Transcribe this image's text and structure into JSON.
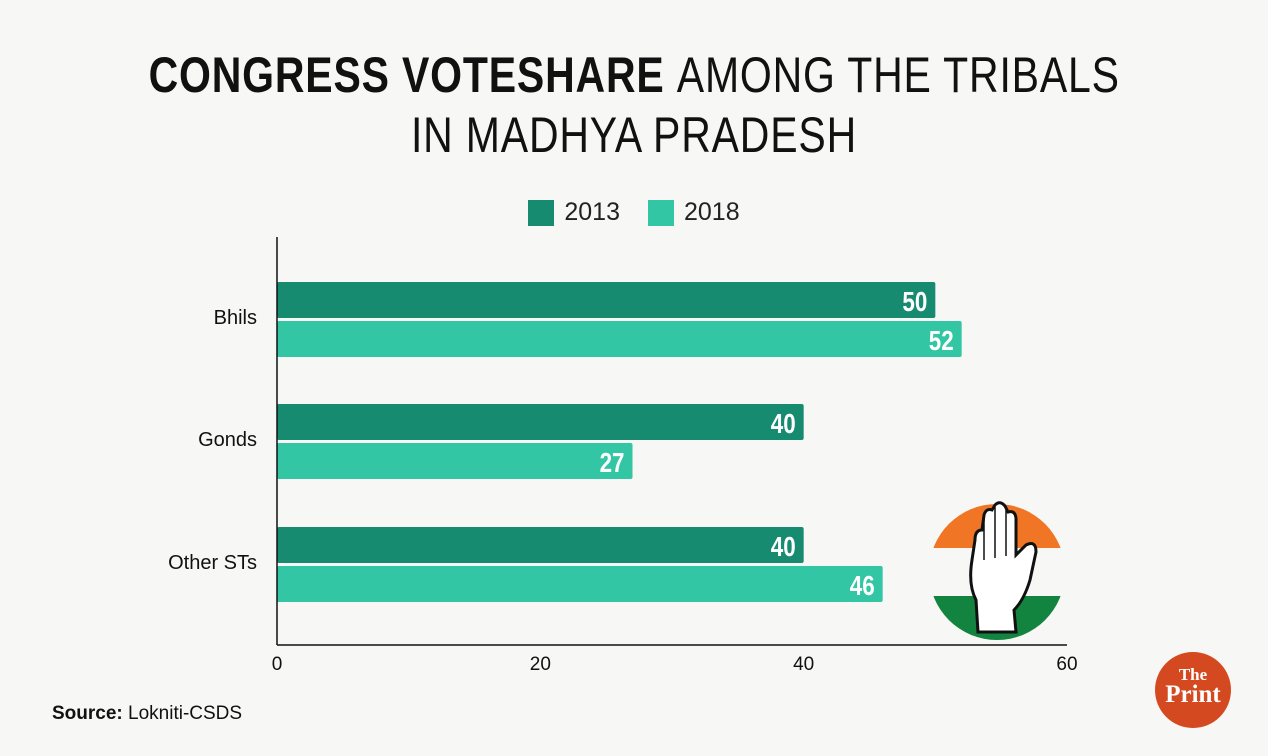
{
  "title": {
    "bold_part": "CONGRESS VOTESHARE",
    "rest_line1": "AMONG THE TRIBALS",
    "line2": "IN MADHYA PRADESH"
  },
  "source": {
    "label": "Source:",
    "value": "Lokniti-CSDS"
  },
  "logos": {
    "party": "Congress hand symbol",
    "publisher_the": "The",
    "publisher_print": "Print"
  },
  "colors": {
    "2013": "#178b70",
    "2018": "#33c6a4",
    "saffron": "#f07524",
    "green": "#12843f",
    "print": "#d4491f"
  },
  "chart_data": {
    "type": "bar",
    "orientation": "horizontal",
    "title": "Congress voteshare among the tribals in Madhya Pradesh",
    "categories": [
      "Bhils",
      "Gonds",
      "Other STs"
    ],
    "series": [
      {
        "name": "2013",
        "values": [
          50,
          40,
          40
        ]
      },
      {
        "name": "2018",
        "values": [
          52,
          27,
          46
        ]
      }
    ],
    "xlim": [
      0,
      60
    ],
    "xticks": [
      0,
      20,
      40,
      60
    ],
    "xlabel": "",
    "ylabel": "",
    "grid": false,
    "legend": "top-center"
  }
}
